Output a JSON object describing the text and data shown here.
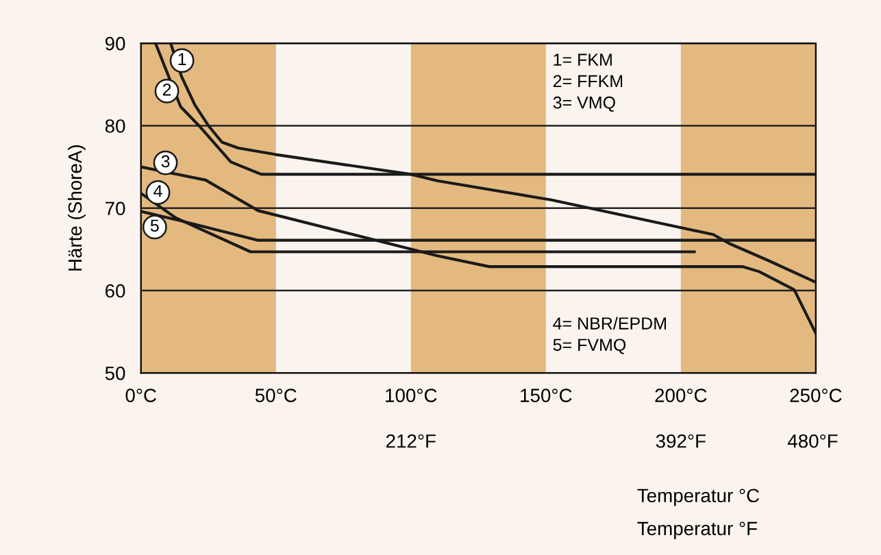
{
  "chart_data": {
    "type": "line",
    "ylabel": "Härte (ShoreA)",
    "xlabel": "Temperatur °C",
    "x2label": "Temperatur °F",
    "xlim": [
      0,
      250
    ],
    "xticks": [
      {
        "value": 0,
        "label": "0°C"
      },
      {
        "value": 50,
        "label": "50°C"
      },
      {
        "value": 100,
        "label": "100°C"
      },
      {
        "value": 150,
        "label": "150°C"
      },
      {
        "value": 200,
        "label": "200°C"
      },
      {
        "value": 250,
        "label": "250°C"
      }
    ],
    "x2lim": [
      32,
      482
    ],
    "x2ticks": [
      {
        "value": 212,
        "label": "212°F"
      },
      {
        "value": 392,
        "label": "392°F"
      },
      {
        "value": 480,
        "label": "480°F"
      }
    ],
    "ylim": [
      50,
      90
    ],
    "yticks": [
      50,
      60,
      70,
      80,
      90
    ],
    "grid": "y",
    "marker": "none",
    "line_style": "solid",
    "bands": [
      {
        "axis": "x",
        "from": 0,
        "to": 50,
        "color": "#e3b97f"
      },
      {
        "axis": "x",
        "from": 100,
        "to": 150,
        "color": "#e3b97f"
      },
      {
        "axis": "x",
        "from": 200,
        "to": 250,
        "color": "#e3b97f"
      }
    ],
    "series": [
      {
        "color": "#1a1a1a",
        "x": [
          11,
          15,
          20,
          25,
          30,
          36,
          50,
          100,
          110,
          152,
          212,
          218,
          232,
          250
        ],
        "values": [
          90,
          86,
          82.5,
          80,
          78,
          77.3,
          76.5,
          74.1,
          73.3,
          71,
          66.8,
          65.7,
          63.7,
          61
        ]
      },
      {
        "color": "#1a1a1a",
        "x": [
          5.4,
          14.7,
          21.5,
          33.3,
          44.6,
          250
        ],
        "values": [
          90,
          82.3,
          80,
          75.6,
          74.1,
          74.1
        ]
      },
      {
        "color": "#1a1a1a",
        "x": [
          0,
          24,
          43.4,
          110,
          129,
          223,
          229,
          242,
          250
        ],
        "values": [
          75,
          73.4,
          69.7,
          64.2,
          62.9,
          62.9,
          62.3,
          60.1,
          54.8
        ]
      },
      {
        "color": "#1a1a1a",
        "x": [
          0,
          13,
          40.6,
          205
        ],
        "values": [
          71.8,
          68.8,
          64.7,
          64.7
        ]
      },
      {
        "color": "#1a1a1a",
        "x": [
          0,
          13,
          43.4,
          250
        ],
        "values": [
          69.6,
          68.6,
          66.1,
          66.1
        ]
      }
    ],
    "annotations": [
      {
        "text": "1",
        "x": 15.2,
        "y": 87.9
      },
      {
        "text": "2",
        "x": 9.6,
        "y": 84.2
      },
      {
        "text": "3",
        "x": 9.1,
        "y": 75.5
      },
      {
        "text": "4",
        "x": 6.3,
        "y": 71.9
      },
      {
        "text": "5",
        "x": 5.1,
        "y": 67.7
      },
      "1= FKM",
      "2= FFKM",
      "3= VMQ",
      "4= NBR/EPDM",
      "5= FVMQ"
    ]
  }
}
